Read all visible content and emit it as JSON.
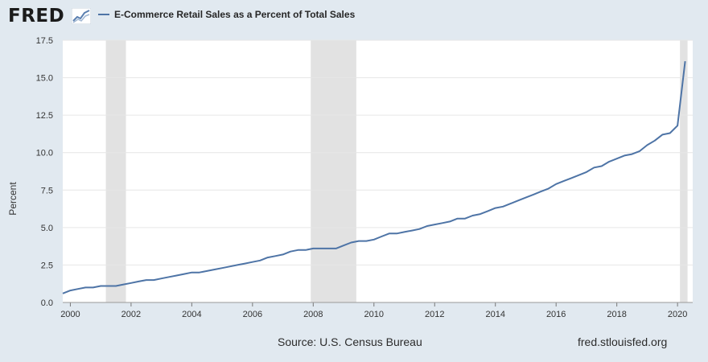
{
  "header": {
    "logo_text": "FRED",
    "legend_label": "E-Commerce Retail Sales as a Percent of Total Sales"
  },
  "footer": {
    "source": "Source: U.S. Census Bureau",
    "url": "fred.stlouisfed.org"
  },
  "colors": {
    "series": "#4e74a6",
    "recession": "#e2e2e2",
    "background": "#e1e9f0"
  },
  "chart_data": {
    "type": "line",
    "title": "",
    "xlabel": "",
    "ylabel": "Percent",
    "xlim": [
      1999.75,
      2020.5
    ],
    "ylim": [
      0,
      17.5
    ],
    "y_ticks": [
      "0.0",
      "2.5",
      "5.0",
      "7.5",
      "10.0",
      "12.5",
      "15.0",
      "17.5"
    ],
    "x_ticks": [
      "2000",
      "2002",
      "2004",
      "2006",
      "2008",
      "2010",
      "2012",
      "2014",
      "2016",
      "2018",
      "2020"
    ],
    "grid": true,
    "legend_position": "top-left",
    "recessions": [
      [
        2001.17,
        2001.83
      ],
      [
        2007.92,
        2009.42
      ],
      [
        2020.08,
        2020.33
      ]
    ],
    "series": [
      {
        "name": "E-Commerce Retail Sales as a Percent of Total Sales",
        "x": [
          1999.75,
          2000.0,
          2000.25,
          2000.5,
          2000.75,
          2001.0,
          2001.25,
          2001.5,
          2001.75,
          2002.0,
          2002.25,
          2002.5,
          2002.75,
          2003.0,
          2003.25,
          2003.5,
          2003.75,
          2004.0,
          2004.25,
          2004.5,
          2004.75,
          2005.0,
          2005.25,
          2005.5,
          2005.75,
          2006.0,
          2006.25,
          2006.5,
          2006.75,
          2007.0,
          2007.25,
          2007.5,
          2007.75,
          2008.0,
          2008.25,
          2008.5,
          2008.75,
          2009.0,
          2009.25,
          2009.5,
          2009.75,
          2010.0,
          2010.25,
          2010.5,
          2010.75,
          2011.0,
          2011.25,
          2011.5,
          2011.75,
          2012.0,
          2012.25,
          2012.5,
          2012.75,
          2013.0,
          2013.25,
          2013.5,
          2013.75,
          2014.0,
          2014.25,
          2014.5,
          2014.75,
          2015.0,
          2015.25,
          2015.5,
          2015.75,
          2016.0,
          2016.25,
          2016.5,
          2016.75,
          2017.0,
          2017.25,
          2017.5,
          2017.75,
          2018.0,
          2018.25,
          2018.5,
          2018.75,
          2019.0,
          2019.25,
          2019.5,
          2019.75,
          2020.0,
          2020.25
        ],
        "values": [
          0.6,
          0.8,
          0.9,
          1.0,
          1.0,
          1.1,
          1.1,
          1.1,
          1.2,
          1.3,
          1.4,
          1.5,
          1.5,
          1.6,
          1.7,
          1.8,
          1.9,
          2.0,
          2.0,
          2.1,
          2.2,
          2.3,
          2.4,
          2.5,
          2.6,
          2.7,
          2.8,
          3.0,
          3.1,
          3.2,
          3.4,
          3.5,
          3.5,
          3.6,
          3.6,
          3.6,
          3.6,
          3.8,
          4.0,
          4.1,
          4.1,
          4.2,
          4.4,
          4.6,
          4.6,
          4.7,
          4.8,
          4.9,
          5.1,
          5.2,
          5.3,
          5.4,
          5.6,
          5.6,
          5.8,
          5.9,
          6.1,
          6.3,
          6.4,
          6.6,
          6.8,
          7.0,
          7.2,
          7.4,
          7.6,
          7.9,
          8.1,
          8.3,
          8.5,
          8.7,
          9.0,
          9.1,
          9.4,
          9.6,
          9.8,
          9.9,
          10.1,
          10.5,
          10.8,
          11.2,
          11.3,
          11.8,
          16.1
        ]
      }
    ]
  }
}
